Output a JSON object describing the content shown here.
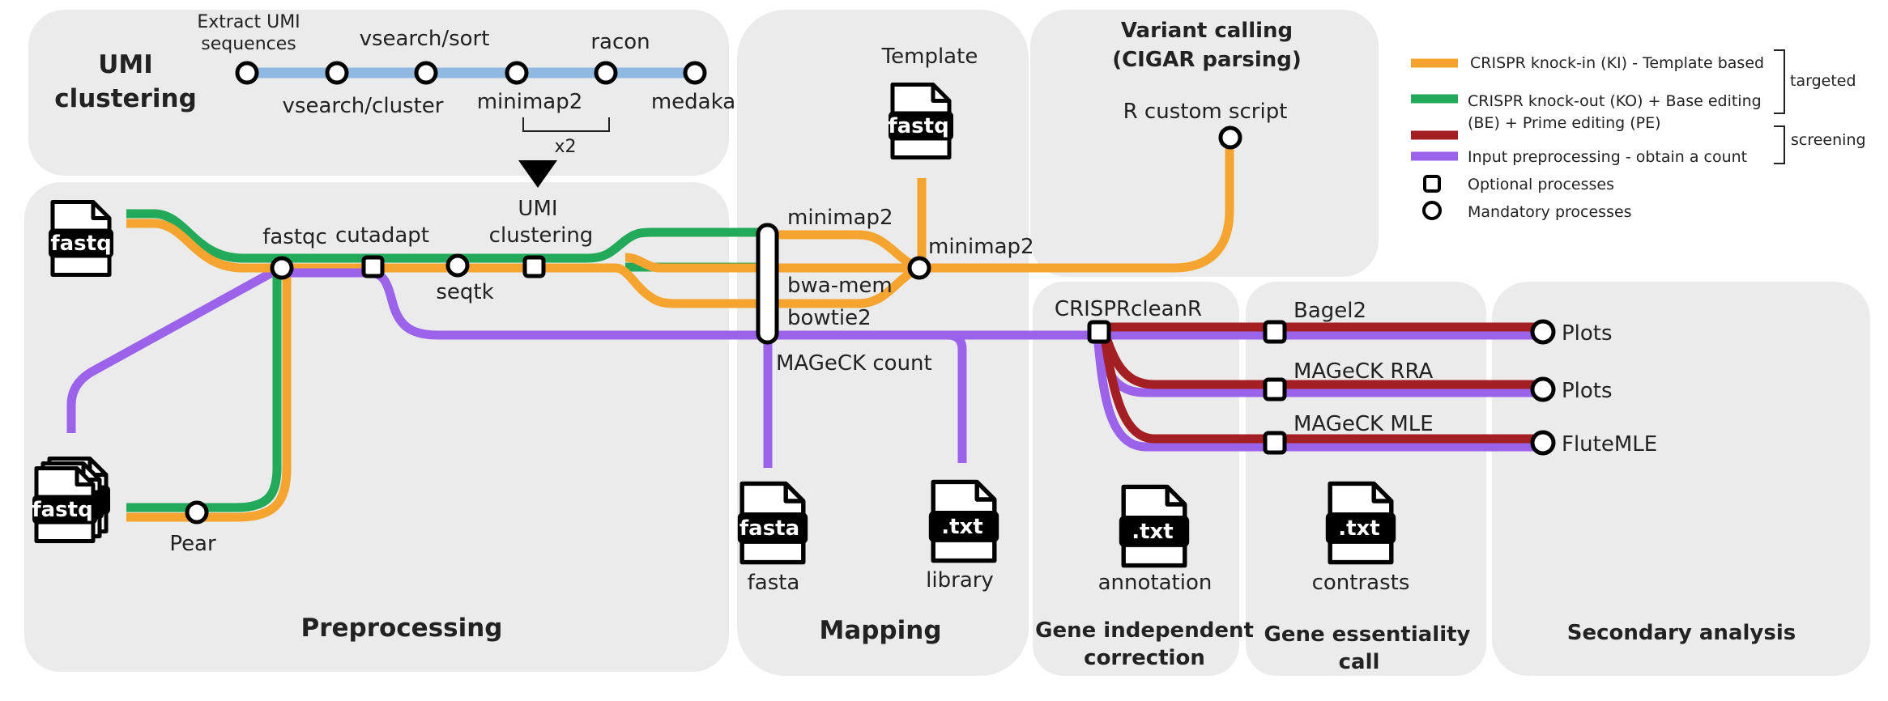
{
  "sections": {
    "umi_title": [
      "UMI",
      "clustering"
    ],
    "preprocessing": "Preprocessing",
    "mapping": "Mapping",
    "variant_title": [
      "Variant calling",
      "(CIGAR parsing)"
    ],
    "gene_independent": [
      "Gene independent",
      "correction"
    ],
    "gene_essentiality": [
      "Gene essentiality",
      "call"
    ],
    "secondary": "Secondary analysis"
  },
  "umi": {
    "extract": [
      "Extract UMI",
      "sequences"
    ],
    "vsearch_sort": "vsearch/sort",
    "vsearch_cluster": "vsearch/cluster",
    "minimap2": "minimap2",
    "racon": "racon",
    "medaka": "medaka",
    "x2": "x2"
  },
  "nodes": {
    "fastqc": "fastqc",
    "cutadapt": "cutadapt",
    "seqtk": "seqtk",
    "umi_clustering": [
      "UMI",
      "clustering"
    ],
    "pear": "Pear",
    "minimap2_map": "minimap2",
    "bwa_mem": "bwa-mem",
    "bowtie2": "bowtie2",
    "mageck_count": "MAGeCK count",
    "template": "Template",
    "minimap2_right": "minimap2",
    "r_custom": "R custom script",
    "crisprcleanr": "CRISPRcleanR",
    "bagel2": "Bagel2",
    "mageck_rra": "MAGeCK RRA",
    "mageck_mle": "MAGeCK MLE",
    "plots1": "Plots",
    "plots2": "Plots",
    "flutemle": "FluteMLE"
  },
  "files": {
    "fastq_top": "fastq",
    "fastq_bottom": "fastq",
    "fastq_template": "fastq",
    "fasta": "fasta",
    "fasta_caption": "fasta",
    "txt_library": ".txt",
    "library_caption": "library",
    "txt_annotation": ".txt",
    "annotation_caption": "annotation",
    "txt_contrasts": ".txt",
    "contrasts_caption": "contrasts"
  },
  "legend": {
    "ki": "CRISPR knock-in (KI) - Template based",
    "ko": [
      "CRISPR knock-out (KO) + Base editing",
      "(BE) + Prime editing (PE)"
    ],
    "preproc": "Input preprocessing - obtain a count",
    "optional": "Optional processes",
    "mandatory": "Mandatory processes",
    "targeted": "targeted",
    "screening": "screening"
  },
  "colors": {
    "orange": "#f5a52f",
    "green": "#22a95a",
    "red": "#a31f24",
    "purple": "#9b63ea",
    "blue": "#8fb9e0",
    "panel": "#ebebeb"
  }
}
